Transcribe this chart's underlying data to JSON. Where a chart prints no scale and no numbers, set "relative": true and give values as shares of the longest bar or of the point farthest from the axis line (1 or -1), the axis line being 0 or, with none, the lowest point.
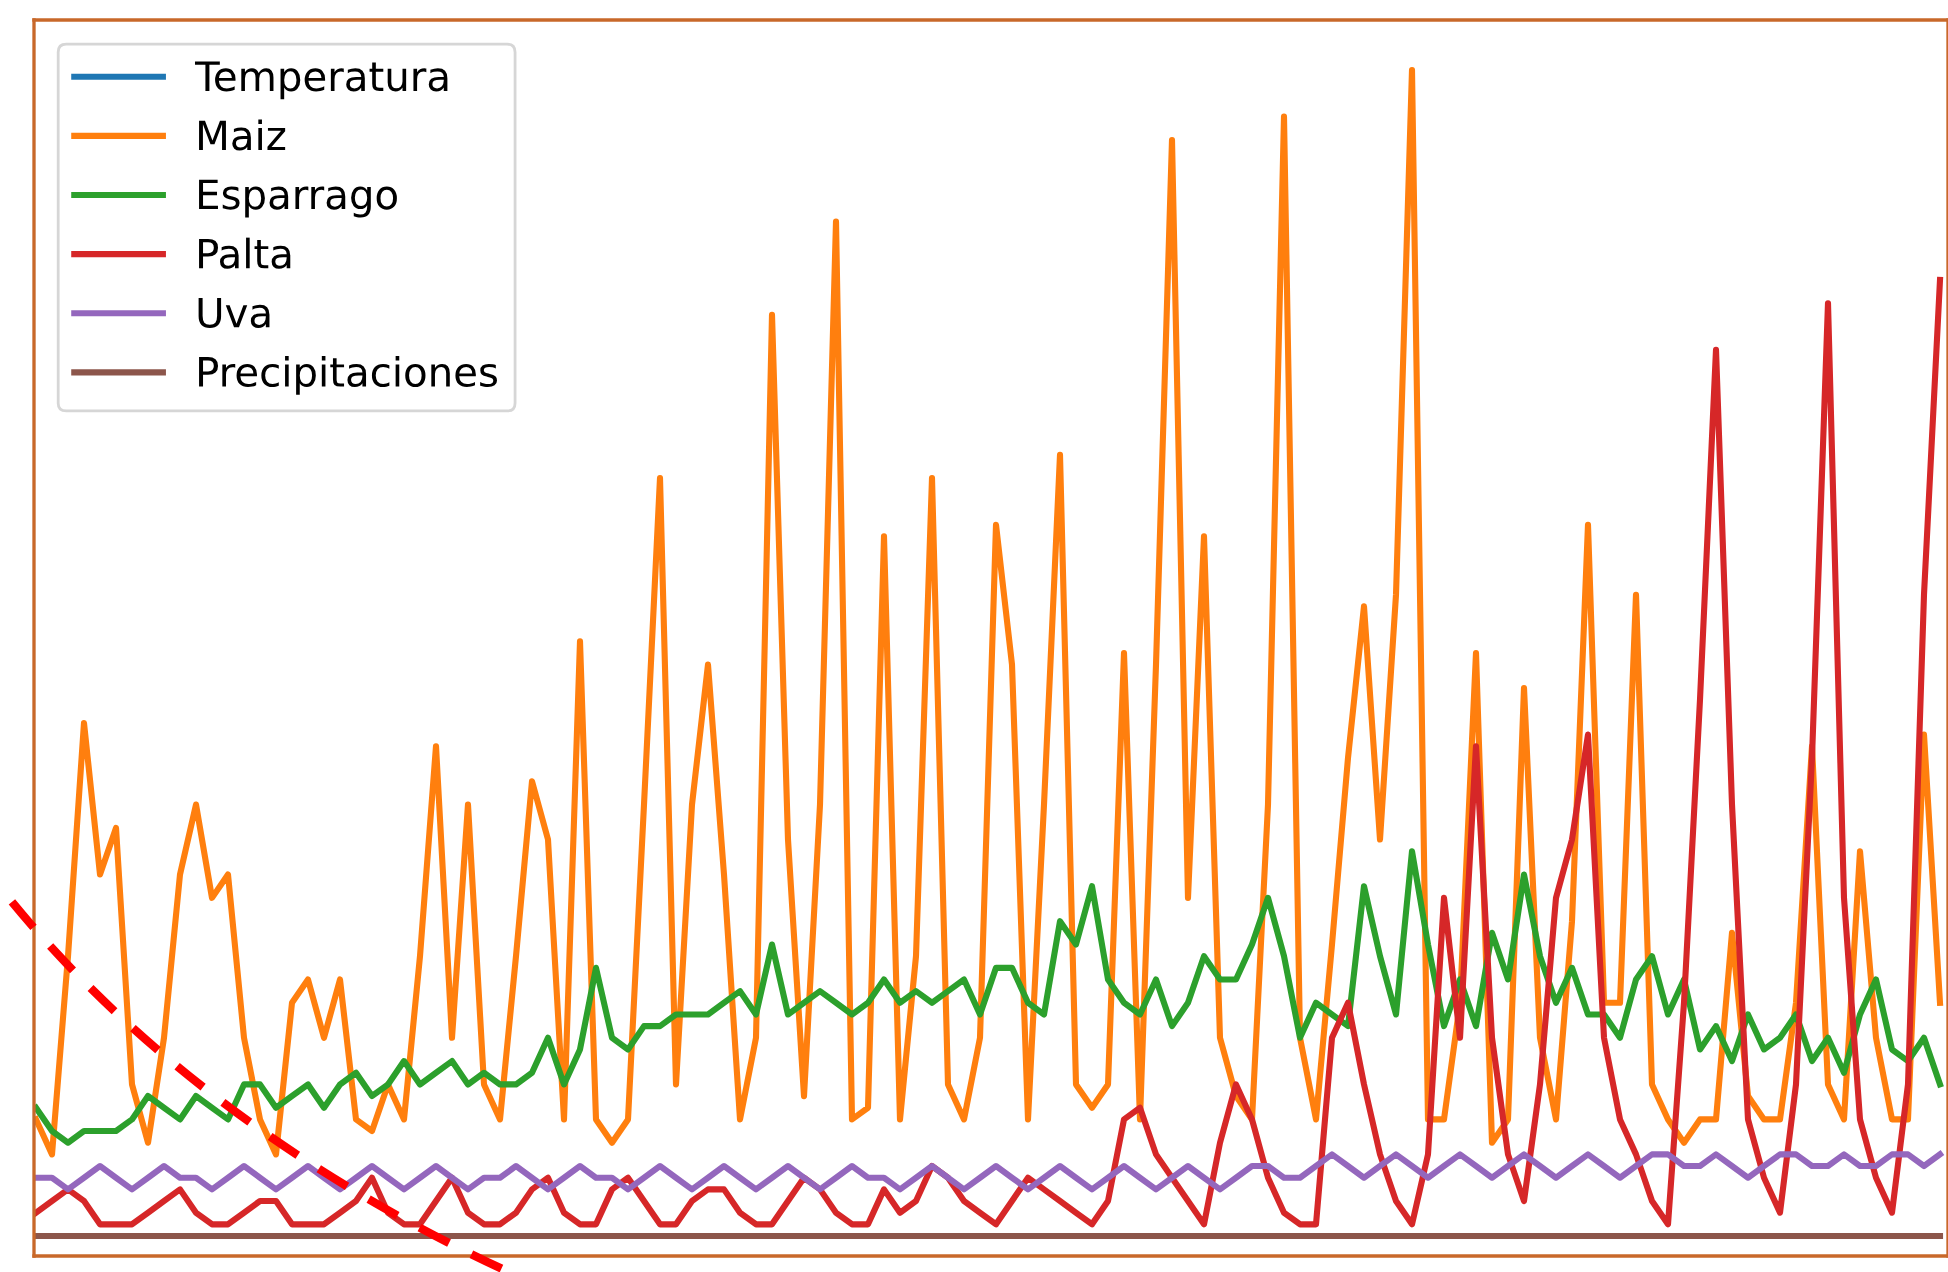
{
  "chart_data": {
    "type": "line",
    "relative": true,
    "legend": "top left",
    "categories": [
      null,
      null,
      null,
      null,
      null,
      null,
      null,
      null,
      null,
      null,
      null,
      null,
      null,
      null,
      null,
      null,
      null,
      null,
      null,
      null,
      null,
      null,
      null,
      null,
      null,
      null,
      null,
      null,
      null,
      null,
      null,
      null,
      null,
      null,
      null,
      null,
      null,
      null,
      null,
      null,
      null,
      null,
      null,
      null,
      null,
      null,
      null,
      null,
      null,
      null,
      null,
      null,
      null,
      null,
      null,
      null,
      null,
      null,
      null,
      null,
      null,
      null,
      null,
      null,
      null,
      null,
      null,
      null,
      null,
      null,
      null,
      null,
      null,
      null,
      null,
      null,
      null,
      null,
      null,
      null,
      null,
      null,
      null,
      null,
      null,
      null,
      null,
      null,
      null,
      null,
      null,
      null,
      null,
      null,
      null,
      null,
      null,
      null,
      null,
      null,
      null,
      null,
      null,
      null,
      null,
      null,
      null,
      null,
      null,
      null,
      null,
      null,
      null,
      null,
      null,
      null,
      null,
      null,
      null,
      null
    ],
    "series": [
      {
        "name": "Temperatura",
        "color": "#1f77b4",
        "values": [
          null,
          null,
          null,
          null,
          null,
          null,
          null,
          null,
          null,
          null,
          null,
          null,
          null,
          null,
          null,
          null,
          null,
          null,
          null,
          null,
          null,
          null,
          null,
          null,
          null,
          null,
          null,
          null,
          null,
          null,
          null,
          null,
          null,
          null,
          null,
          null,
          null,
          null,
          null,
          null,
          null,
          null,
          null,
          null,
          null,
          null,
          null,
          null,
          null,
          null,
          null,
          null,
          null,
          null,
          null,
          null,
          null,
          null,
          null,
          null,
          null,
          null,
          null,
          null,
          null,
          null,
          null,
          null,
          null,
          null,
          null,
          null,
          null,
          null,
          null,
          null,
          null,
          null,
          null,
          null,
          null,
          null,
          null,
          null,
          null,
          null,
          null,
          null,
          null,
          null,
          null,
          null,
          null,
          null,
          null,
          null,
          null,
          null,
          null,
          null,
          null,
          null,
          null,
          null,
          null,
          null,
          null,
          null,
          null,
          null,
          null,
          null,
          null,
          null,
          null,
          null,
          null,
          null,
          null,
          null
        ]
      },
      {
        "name": "Maiz",
        "color": "#ff7f0e",
        "values": [
          0.1,
          0.07,
          0.24,
          0.44,
          0.31,
          0.35,
          0.13,
          0.08,
          0.17,
          0.31,
          0.37,
          0.29,
          0.31,
          0.17,
          0.1,
          0.07,
          0.2,
          0.22,
          0.17,
          0.22,
          0.1,
          0.09,
          0.13,
          0.1,
          0.24,
          0.42,
          0.17,
          0.37,
          0.13,
          0.1,
          0.24,
          0.39,
          0.34,
          0.1,
          0.51,
          0.1,
          0.08,
          0.1,
          0.37,
          0.65,
          0.13,
          0.37,
          0.49,
          0.31,
          0.1,
          0.17,
          0.79,
          0.34,
          0.12,
          0.37,
          0.87,
          0.1,
          0.11,
          0.6,
          0.1,
          0.24,
          0.65,
          0.13,
          0.1,
          0.17,
          0.61,
          0.49,
          0.1,
          0.37,
          0.67,
          0.13,
          0.11,
          0.13,
          0.5,
          0.1,
          0.49,
          0.94,
          0.29,
          0.6,
          0.17,
          0.12,
          0.1,
          0.37,
          0.96,
          0.17,
          0.1,
          0.25,
          0.41,
          0.54,
          0.34,
          0.55,
          1.0,
          0.1,
          0.1,
          0.2,
          0.5,
          0.08,
          0.1,
          0.47,
          0.17,
          0.1,
          0.27,
          0.61,
          0.2,
          0.2,
          0.55,
          0.13,
          0.1,
          0.08,
          0.1,
          0.1,
          0.26,
          0.12,
          0.1,
          0.1,
          0.2,
          0.42,
          0.13,
          0.1,
          0.33,
          0.17,
          0.1,
          0.1,
          0.43,
          0.2
        ]
      },
      {
        "name": "Esparrago",
        "color": "#2ca02c",
        "values": [
          0.11,
          0.09,
          0.08,
          0.09,
          0.09,
          0.09,
          0.1,
          0.12,
          0.11,
          0.1,
          0.12,
          0.11,
          0.1,
          0.13,
          0.13,
          0.11,
          0.12,
          0.13,
          0.11,
          0.13,
          0.14,
          0.12,
          0.13,
          0.15,
          0.13,
          0.14,
          0.15,
          0.13,
          0.14,
          0.13,
          0.13,
          0.14,
          0.17,
          0.13,
          0.16,
          0.23,
          0.17,
          0.16,
          0.18,
          0.18,
          0.19,
          0.19,
          0.19,
          0.2,
          0.21,
          0.19,
          0.25,
          0.19,
          0.2,
          0.21,
          0.2,
          0.19,
          0.2,
          0.22,
          0.2,
          0.21,
          0.2,
          0.21,
          0.22,
          0.19,
          0.23,
          0.23,
          0.2,
          0.19,
          0.27,
          0.25,
          0.3,
          0.22,
          0.2,
          0.19,
          0.22,
          0.18,
          0.2,
          0.24,
          0.22,
          0.22,
          0.25,
          0.29,
          0.24,
          0.17,
          0.2,
          0.19,
          0.18,
          0.3,
          0.24,
          0.19,
          0.33,
          0.25,
          0.18,
          0.22,
          0.18,
          0.26,
          0.22,
          0.31,
          0.24,
          0.2,
          0.23,
          0.19,
          0.19,
          0.17,
          0.22,
          0.24,
          0.19,
          0.22,
          0.16,
          0.18,
          0.15,
          0.19,
          0.16,
          0.17,
          0.19,
          0.15,
          0.17,
          0.14,
          0.19,
          0.22,
          0.16,
          0.15,
          0.17,
          0.13
        ]
      },
      {
        "name": "Palta",
        "color": "#d62728",
        "values": [
          0.02,
          0.03,
          0.04,
          0.03,
          0.01,
          0.01,
          0.01,
          0.02,
          0.03,
          0.04,
          0.02,
          0.01,
          0.01,
          0.02,
          0.03,
          0.03,
          0.01,
          0.01,
          0.01,
          0.02,
          0.03,
          0.05,
          0.02,
          0.01,
          0.01,
          0.03,
          0.05,
          0.02,
          0.01,
          0.01,
          0.02,
          0.04,
          0.05,
          0.02,
          0.01,
          0.01,
          0.04,
          0.05,
          0.03,
          0.01,
          0.01,
          0.03,
          0.04,
          0.04,
          0.02,
          0.01,
          0.01,
          0.03,
          0.05,
          0.04,
          0.02,
          0.01,
          0.01,
          0.04,
          0.02,
          0.03,
          0.06,
          0.05,
          0.03,
          0.02,
          0.01,
          0.03,
          0.05,
          0.04,
          0.03,
          0.02,
          0.01,
          0.03,
          0.1,
          0.11,
          0.07,
          0.05,
          0.03,
          0.01,
          0.08,
          0.13,
          0.1,
          0.05,
          0.02,
          0.01,
          0.01,
          0.17,
          0.2,
          0.13,
          0.07,
          0.03,
          0.01,
          0.07,
          0.29,
          0.17,
          0.42,
          0.17,
          0.07,
          0.03,
          0.13,
          0.29,
          0.34,
          0.43,
          0.17,
          0.1,
          0.07,
          0.03,
          0.01,
          0.2,
          0.46,
          0.76,
          0.37,
          0.1,
          0.05,
          0.02,
          0.13,
          0.41,
          0.8,
          0.29,
          0.1,
          0.05,
          0.02,
          0.13,
          0.55,
          0.82
        ]
      },
      {
        "name": "Uva",
        "color": "#9467bd",
        "values": [
          0.05,
          0.05,
          0.04,
          0.05,
          0.06,
          0.05,
          0.04,
          0.05,
          0.06,
          0.05,
          0.05,
          0.04,
          0.05,
          0.06,
          0.05,
          0.04,
          0.05,
          0.06,
          0.05,
          0.04,
          0.05,
          0.06,
          0.05,
          0.04,
          0.05,
          0.06,
          0.05,
          0.04,
          0.05,
          0.05,
          0.06,
          0.05,
          0.04,
          0.05,
          0.06,
          0.05,
          0.05,
          0.04,
          0.05,
          0.06,
          0.05,
          0.04,
          0.05,
          0.06,
          0.05,
          0.04,
          0.05,
          0.06,
          0.05,
          0.04,
          0.05,
          0.06,
          0.05,
          0.05,
          0.04,
          0.05,
          0.06,
          0.05,
          0.04,
          0.05,
          0.06,
          0.05,
          0.04,
          0.05,
          0.06,
          0.05,
          0.04,
          0.05,
          0.06,
          0.05,
          0.04,
          0.05,
          0.06,
          0.05,
          0.04,
          0.05,
          0.06,
          0.06,
          0.05,
          0.05,
          0.06,
          0.07,
          0.06,
          0.05,
          0.06,
          0.07,
          0.06,
          0.05,
          0.06,
          0.07,
          0.06,
          0.05,
          0.06,
          0.07,
          0.06,
          0.05,
          0.06,
          0.07,
          0.06,
          0.05,
          0.06,
          0.07,
          0.07,
          0.06,
          0.06,
          0.07,
          0.06,
          0.05,
          0.06,
          0.07,
          0.07,
          0.06,
          0.06,
          0.07,
          0.06,
          0.06,
          0.07,
          0.07,
          0.06,
          0.07
        ]
      },
      {
        "name": "Precipitaciones",
        "color": "#8c564b",
        "values": [
          0,
          0,
          0,
          0,
          0,
          0,
          0,
          0,
          0,
          0,
          0,
          0,
          0,
          0,
          0,
          0,
          0,
          0,
          0,
          0,
          0,
          0,
          0,
          0,
          0,
          0,
          0,
          0,
          0,
          0,
          0,
          0,
          0,
          0,
          0,
          0,
          0,
          0,
          0,
          0,
          0,
          0,
          0,
          0,
          0,
          0,
          0,
          0,
          0,
          0,
          0,
          0,
          0,
          0,
          0,
          0,
          0,
          0,
          0,
          0,
          0,
          0,
          0,
          0,
          0,
          0,
          0,
          0,
          0,
          0,
          0,
          0,
          0,
          0,
          0,
          0,
          0,
          0,
          0,
          0,
          0,
          0,
          0,
          0,
          0,
          0,
          0,
          0,
          0,
          0,
          0,
          0,
          0,
          0,
          0,
          0,
          0,
          0,
          0,
          0,
          0,
          0,
          0,
          0,
          0,
          0,
          0,
          0,
          0,
          0,
          0,
          0,
          0,
          0,
          0,
          0,
          0,
          0,
          0,
          0
        ]
      }
    ]
  }
}
